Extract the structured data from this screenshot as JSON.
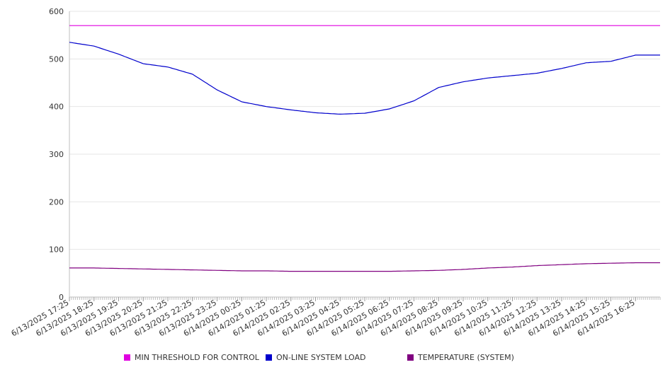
{
  "chart_data": {
    "type": "line",
    "title": "",
    "xlabel": "",
    "ylabel": "",
    "ylim": [
      0,
      600
    ],
    "yticks": [
      0,
      100,
      200,
      300,
      400,
      500,
      600
    ],
    "grid": true,
    "legend_position": "bottom",
    "x": [
      "6/13/2025 17:25",
      "6/13/2025 18:25",
      "6/13/2025 19:25",
      "6/13/2025 20:25",
      "6/13/2025 21:25",
      "6/13/2025 22:25",
      "6/13/2025 23:25",
      "6/14/2025 00:25",
      "6/14/2025 01:25",
      "6/14/2025 02:25",
      "6/14/2025 03:25",
      "6/14/2025 04:25",
      "6/14/2025 05:25",
      "6/14/2025 06:25",
      "6/14/2025 07:25",
      "6/14/2025 08:25",
      "6/14/2025 09:25",
      "6/14/2025 10:25",
      "6/14/2025 11:25",
      "6/14/2025 12:25",
      "6/14/2025 13:25",
      "6/14/2025 14:25",
      "6/14/2025 15:25",
      "6/14/2025 16:25"
    ],
    "series": [
      {
        "name": "MIN THRESHOLD FOR CONTROL",
        "color": "#e000e0",
        "values": [
          570,
          570,
          570,
          570,
          570,
          570,
          570,
          570,
          570,
          570,
          570,
          570,
          570,
          570,
          570,
          570,
          570,
          570,
          570,
          570,
          570,
          570,
          570,
          570
        ]
      },
      {
        "name": "ON-LINE SYSTEM LOAD",
        "color": "#0000cc",
        "values": [
          535,
          527,
          510,
          490,
          483,
          468,
          435,
          410,
          400,
          393,
          387,
          384,
          386,
          395,
          412,
          440,
          452,
          460,
          465,
          470,
          480,
          492,
          495,
          508
        ]
      },
      {
        "name": "TEMPERATURE (SYSTEM)",
        "color": "#800080",
        "values": [
          61,
          61,
          60,
          59,
          58,
          57,
          56,
          55,
          55,
          54,
          54,
          54,
          54,
          54,
          55,
          56,
          58,
          61,
          63,
          66,
          68,
          70,
          71,
          72
        ]
      }
    ]
  }
}
